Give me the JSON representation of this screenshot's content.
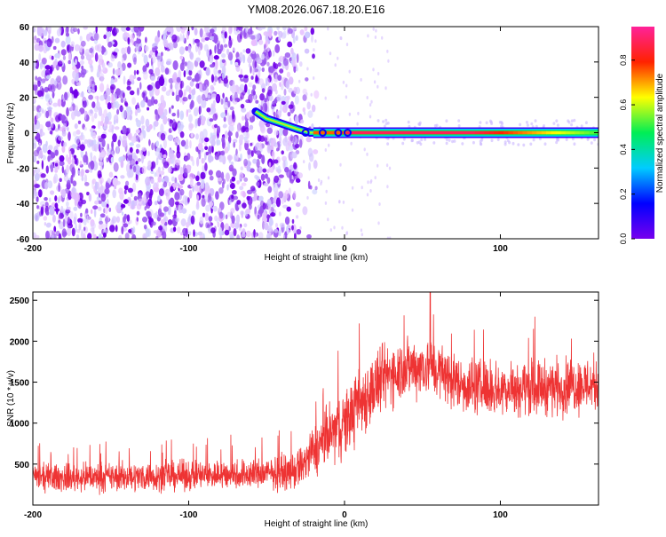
{
  "figure": {
    "title": "YM08.2026.067.18.20.E16"
  },
  "chart_data": [
    {
      "type": "heatmap",
      "title": "YM08.2026.067.18.20.E16",
      "xlabel": "Height of straight line (km)",
      "ylabel": "Frequency (Hz)",
      "xlim": [
        -200,
        163
      ],
      "ylim": [
        -60,
        60
      ],
      "xticks": [
        "-200",
        "-100",
        "0",
        "100"
      ],
      "yticks": [
        "60",
        "40",
        "20",
        "0",
        "-20",
        "-40",
        "-60"
      ],
      "colorbar": {
        "label": "Normalized spectral amplitude",
        "range": [
          0.0,
          0.95
        ],
        "ticks": [
          "0.0",
          "0.2",
          "0.4",
          "0.6",
          "0.8"
        ],
        "colormap": [
          "#7700ee",
          "#0000ff",
          "#00ccff",
          "#00ee55",
          "#ffff00",
          "#ff2200",
          "#ff2299"
        ]
      },
      "features": {
        "noise_region_end_km": -30,
        "descending_track": [
          [
            -57,
            12
          ],
          [
            -50,
            8
          ],
          [
            -40,
            5
          ],
          [
            -30,
            2
          ],
          [
            -22,
            0
          ],
          [
            0,
            0
          ]
        ],
        "carrier_line": {
          "from_km": -20,
          "to_km": 163,
          "frequency_hz": 0
        },
        "carrier_peak_amplitude": 0.9,
        "noise_amplitude": 0.05
      }
    },
    {
      "type": "line",
      "title": "",
      "xlabel": "Height of straight line (km)",
      "ylabel": "SNR (10 * v/v)",
      "xlim": [
        -200,
        163
      ],
      "ylim": [
        0,
        2600
      ],
      "xticks": [
        "-200",
        "-100",
        "0",
        "100"
      ],
      "yticks": [
        "2500",
        "2000",
        "1500",
        "1000",
        "500"
      ],
      "color": "#ee3333",
      "series": [
        {
          "name": "SNR",
          "envelope_x": [
            -200,
            -150,
            -100,
            -60,
            -35,
            -30,
            -20,
            -10,
            0,
            10,
            20,
            30,
            40,
            50,
            60,
            70,
            80,
            100,
            120,
            140,
            163
          ],
          "envelope_mean": [
            330,
            340,
            360,
            380,
            400,
            430,
            650,
            850,
            1000,
            1250,
            1450,
            1620,
            1680,
            1700,
            1650,
            1520,
            1450,
            1420,
            1440,
            1450,
            1480
          ],
          "envelope_spread": [
            200,
            210,
            220,
            230,
            240,
            300,
            380,
            450,
            500,
            530,
            520,
            480,
            450,
            440,
            430,
            420,
            410,
            400,
            400,
            410,
            420
          ],
          "peak_value": 2600,
          "peak_x": 55
        }
      ]
    }
  ]
}
